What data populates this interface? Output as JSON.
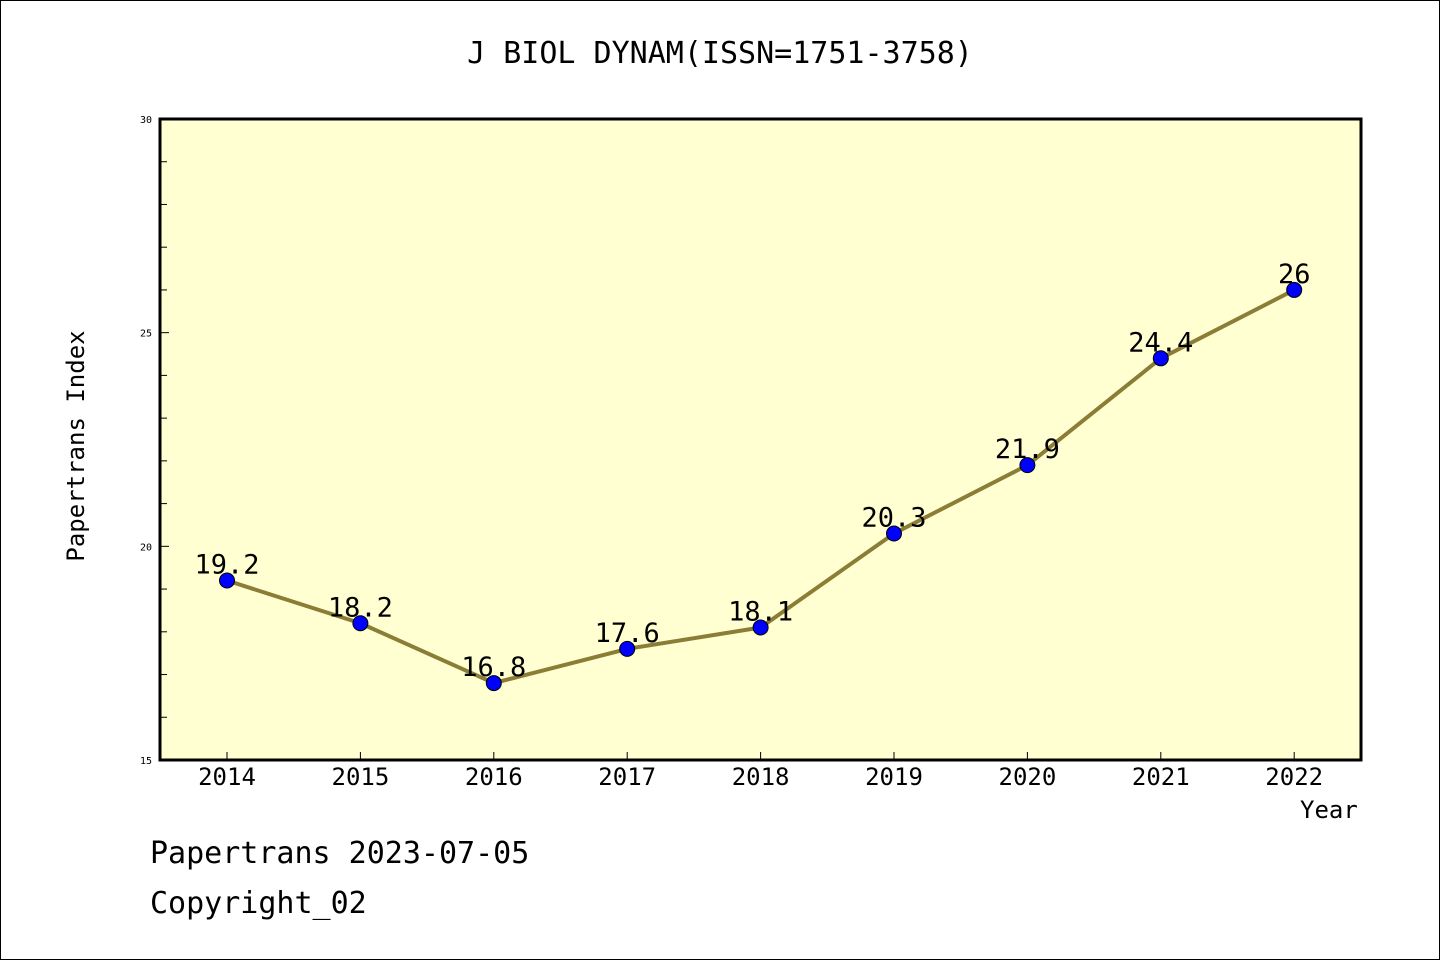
{
  "chart_data": {
    "type": "line",
    "title": "J BIOL DYNAM(ISSN=1751-3758)",
    "xlabel": "Year",
    "ylabel": "Papertrans Index",
    "categories": [
      "2014",
      "2015",
      "2016",
      "2017",
      "2018",
      "2019",
      "2020",
      "2021",
      "2022"
    ],
    "values": [
      19.2,
      18.2,
      16.8,
      17.6,
      18.1,
      20.3,
      21.9,
      24.4,
      26
    ],
    "value_labels": [
      "19.2",
      "18.2",
      "16.8",
      "17.6",
      "18.1",
      "20.3",
      "21.9",
      "24.4",
      "26"
    ],
    "ylim": [
      15,
      30
    ],
    "yticks": [
      "15",
      "20",
      "25",
      "30"
    ],
    "grid": false,
    "legend": "none"
  },
  "colors": {
    "plot_background": "#ffffd2",
    "line": "#8b7d35",
    "marker": "#0000ff"
  },
  "footer": {
    "line1": "Papertrans 2023-07-05",
    "line2": "Copyright_02"
  }
}
